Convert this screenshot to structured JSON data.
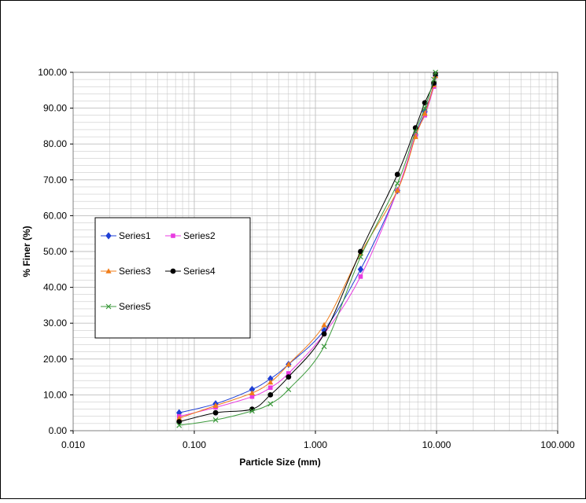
{
  "chart_data": {
    "type": "line",
    "xscale": "log",
    "xlabel": "Particle Size (mm)",
    "ylabel": "% Finer (%)",
    "xlim": [
      0.01,
      100
    ],
    "ylim": [
      0,
      100
    ],
    "xticks": [
      "0.010",
      "0.100",
      "1.000",
      "10.000",
      "100.000"
    ],
    "yticks": [
      "0.00",
      "10.00",
      "20.00",
      "30.00",
      "40.00",
      "50.00",
      "60.00",
      "70.00",
      "80.00",
      "90.00",
      "100.00"
    ],
    "grid": true,
    "legend_position": "left",
    "series": [
      {
        "name": "Series1",
        "color": "#1f3fd6",
        "marker": "diamond",
        "points": [
          [
            0.075,
            5.0
          ],
          [
            0.15,
            7.5
          ],
          [
            0.3,
            11.5
          ],
          [
            0.425,
            14.5
          ],
          [
            0.6,
            18.5
          ],
          [
            1.18,
            28.0
          ],
          [
            2.36,
            45.0
          ],
          [
            4.75,
            67.0
          ],
          [
            6.7,
            82.5
          ],
          [
            8.0,
            89.0
          ],
          [
            9.5,
            96.5
          ],
          [
            9.8,
            99.0
          ]
        ]
      },
      {
        "name": "Series2",
        "color": "#e83be0",
        "marker": "square",
        "points": [
          [
            0.075,
            4.0
          ],
          [
            0.15,
            6.5
          ],
          [
            0.3,
            9.5
          ],
          [
            0.425,
            12.0
          ],
          [
            0.6,
            16.0
          ],
          [
            1.18,
            27.0
          ],
          [
            2.36,
            43.0
          ],
          [
            4.75,
            67.0
          ],
          [
            6.7,
            82.5
          ],
          [
            8.0,
            88.0
          ],
          [
            9.5,
            96.0
          ],
          [
            9.8,
            99.0
          ]
        ]
      },
      {
        "name": "Series3",
        "color": "#f07d1a",
        "marker": "triangle",
        "points": [
          [
            0.075,
            3.5
          ],
          [
            0.15,
            7.0
          ],
          [
            0.3,
            10.5
          ],
          [
            0.425,
            13.5
          ],
          [
            0.6,
            18.5
          ],
          [
            1.18,
            29.5
          ],
          [
            2.36,
            49.5
          ],
          [
            4.75,
            67.0
          ],
          [
            6.7,
            82.0
          ],
          [
            8.0,
            88.5
          ],
          [
            9.5,
            96.5
          ],
          [
            9.8,
            99.0
          ]
        ]
      },
      {
        "name": "Series4",
        "color": "#000000",
        "marker": "circle",
        "points": [
          [
            0.075,
            2.5
          ],
          [
            0.15,
            5.0
          ],
          [
            0.3,
            6.0
          ],
          [
            0.425,
            10.0
          ],
          [
            0.6,
            15.0
          ],
          [
            1.18,
            27.0
          ],
          [
            2.36,
            50.0
          ],
          [
            4.75,
            71.5
          ],
          [
            6.7,
            84.5
          ],
          [
            8.0,
            91.5
          ],
          [
            9.5,
            97.0
          ],
          [
            9.8,
            99.5
          ]
        ]
      },
      {
        "name": "Series5",
        "color": "#3c9a3c",
        "marker": "x",
        "points": [
          [
            0.075,
            1.5
          ],
          [
            0.15,
            3.0
          ],
          [
            0.3,
            5.5
          ],
          [
            0.425,
            7.5
          ],
          [
            0.6,
            11.5
          ],
          [
            1.18,
            23.5
          ],
          [
            2.36,
            48.5
          ],
          [
            4.75,
            69.0
          ],
          [
            6.7,
            83.5
          ],
          [
            8.0,
            90.0
          ],
          [
            9.5,
            98.0
          ],
          [
            9.8,
            100.0
          ]
        ]
      }
    ]
  }
}
